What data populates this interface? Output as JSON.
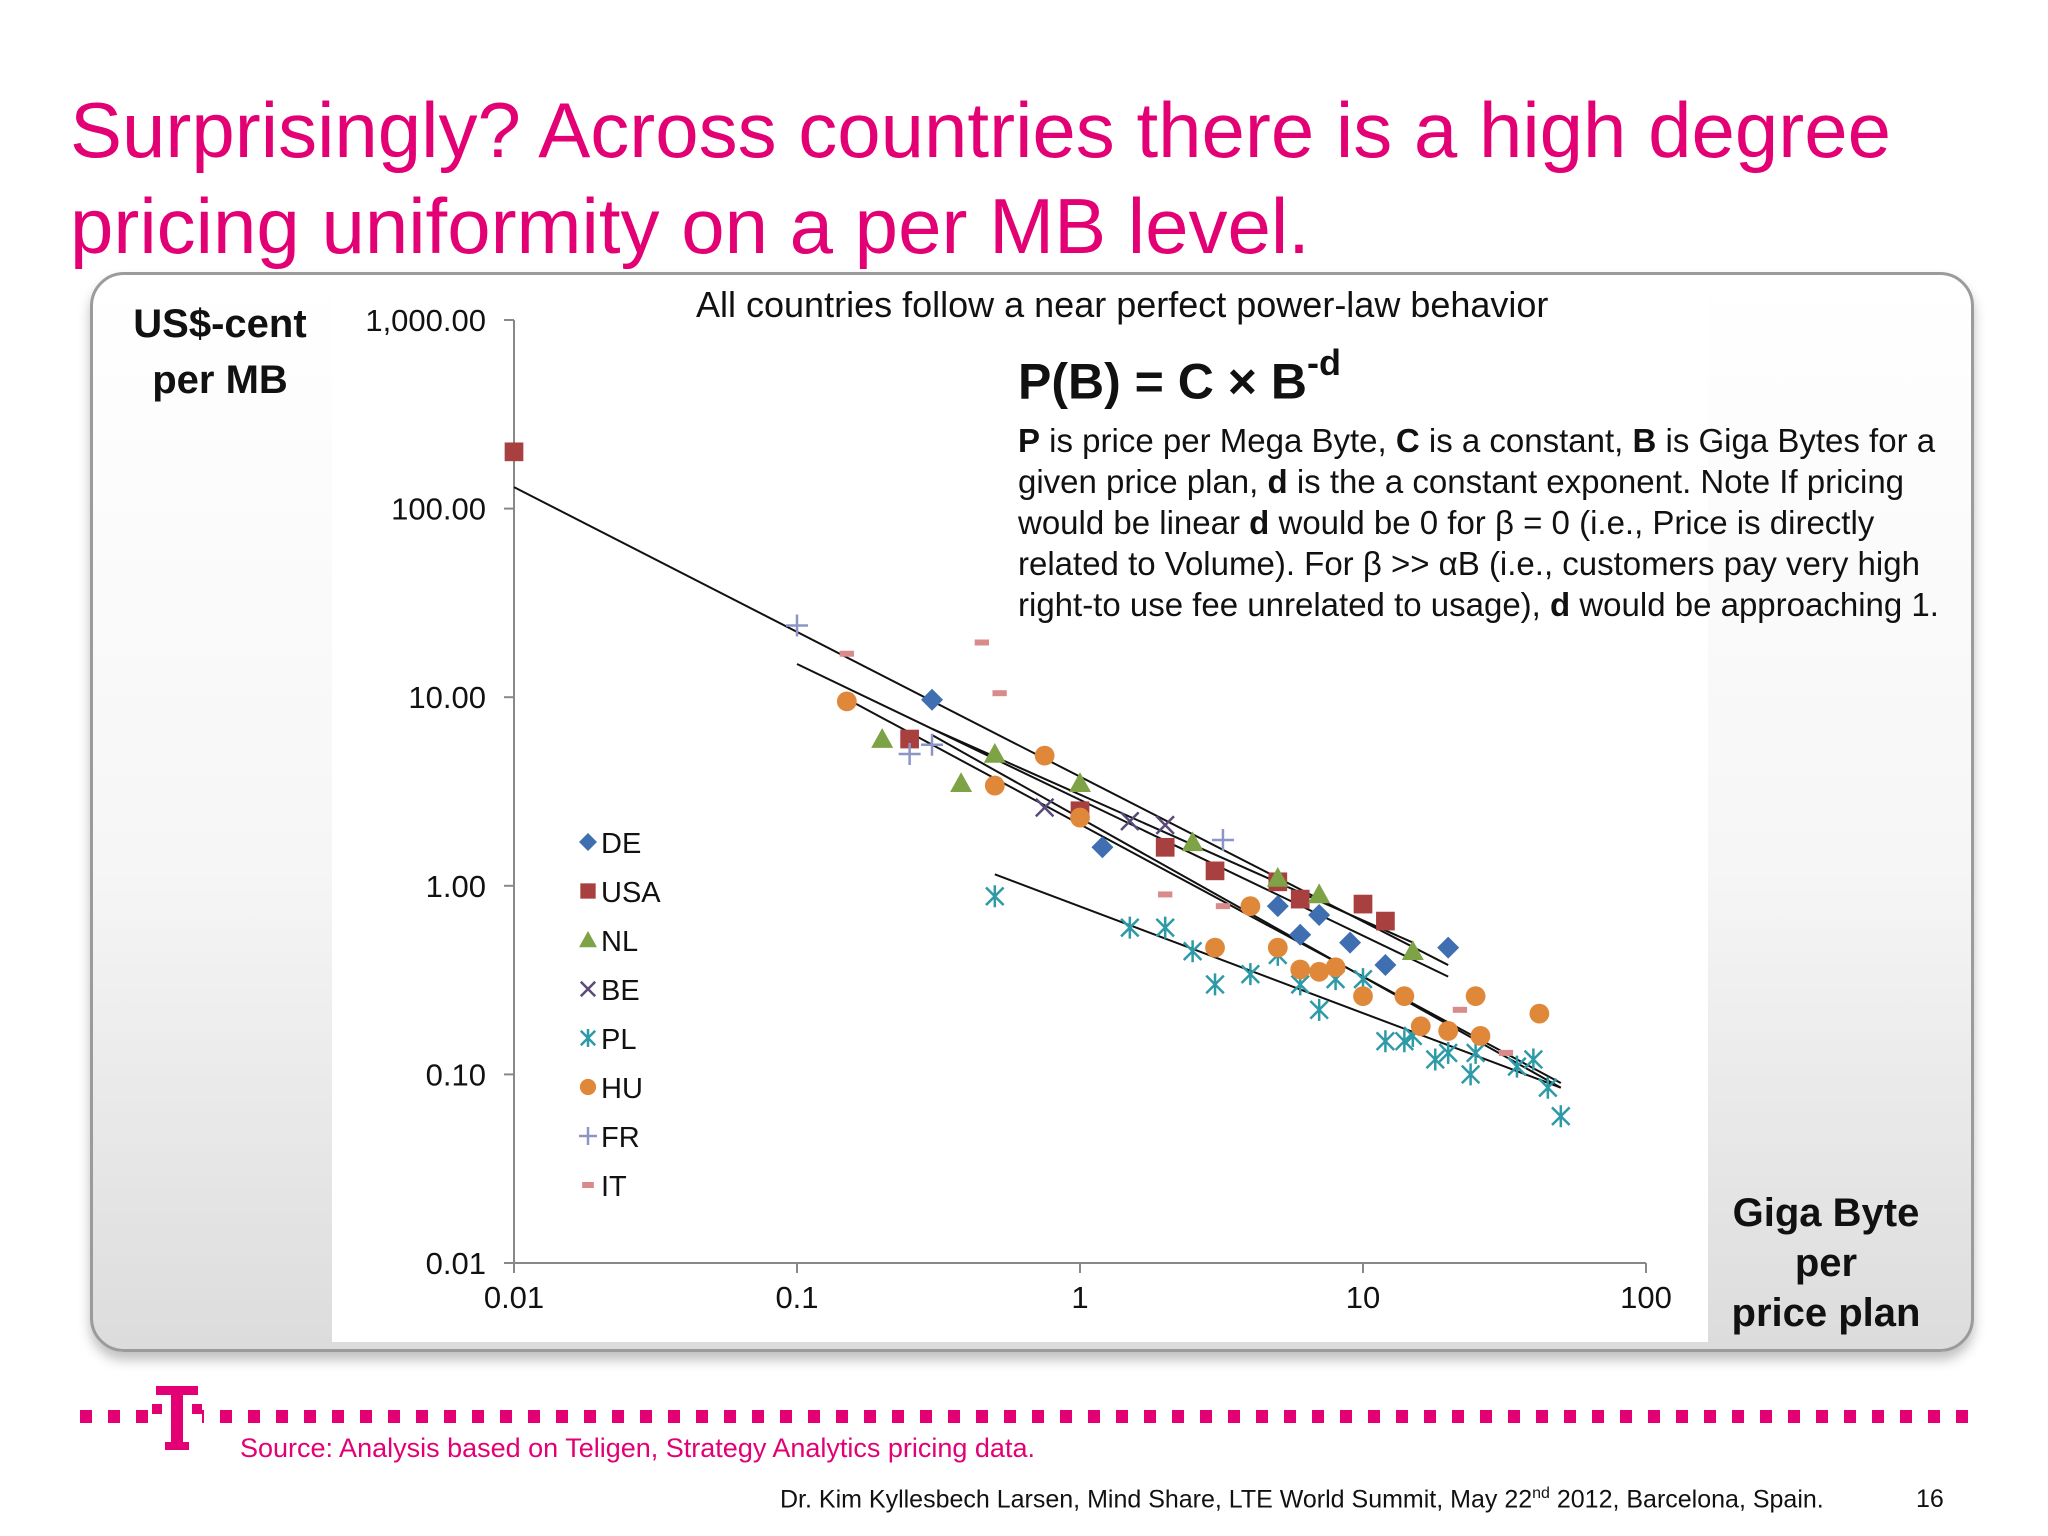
{
  "slide": {
    "title": "Surprisingly? Across countries there is a high degree pricing uniformity on a per MB level.",
    "source": "Source: Analysis based on Teligen, Strategy Analytics pricing data.",
    "footer_pre": "Dr. Kim Kyllesbech Larsen, Mind Share, LTE World Summit, May 22",
    "footer_sup": "nd",
    "footer_post": " 2012, Barcelona, Spain.",
    "page_number": "16"
  },
  "annotation": {
    "headline": "All countries follow a near perfect  power-law behavior",
    "formula_base": "P(B) = C × B",
    "formula_exp": "-d"
  },
  "colors": {
    "accent": "#e20074",
    "DE": "#3f6fb0",
    "USA": "#a84040",
    "NL": "#7ea346",
    "BE": "#5a4a7a",
    "PL": "#2e9aa8",
    "HU": "#e0883a",
    "FR": "#8c96c6",
    "IT": "#d98a8a"
  },
  "chart_data": {
    "type": "scatter",
    "title": "",
    "xlabel": "Giga Byte\nper\nprice plan",
    "ylabel": "US$-cent\nper MB",
    "x_scale": "log",
    "y_scale": "log",
    "xlim": [
      0.01,
      100
    ],
    "ylim": [
      0.01,
      1000
    ],
    "x_ticks": [
      "0.01",
      "0.1",
      "1",
      "10",
      "100"
    ],
    "y_ticks": [
      "0.01",
      "0.10",
      "1.00",
      "10.00",
      "100.00",
      "1,000.00"
    ],
    "grid": false,
    "legend_position": "left",
    "series": [
      {
        "name": "DE",
        "marker": "diamond",
        "points": [
          [
            0.3,
            9.7
          ],
          [
            1.2,
            1.6
          ],
          [
            5,
            0.78
          ],
          [
            6,
            0.55
          ],
          [
            7,
            0.7
          ],
          [
            9,
            0.5
          ],
          [
            12,
            0.38
          ],
          [
            20,
            0.47
          ]
        ]
      },
      {
        "name": "USA",
        "marker": "square",
        "points": [
          [
            0.01,
            200
          ],
          [
            0.25,
            6
          ],
          [
            1,
            2.5
          ],
          [
            2,
            1.6
          ],
          [
            3,
            1.2
          ],
          [
            5,
            1.05
          ],
          [
            6,
            0.85
          ],
          [
            10,
            0.8
          ],
          [
            12,
            0.65
          ]
        ]
      },
      {
        "name": "NL",
        "marker": "triangle",
        "points": [
          [
            0.2,
            6
          ],
          [
            0.38,
            3.5
          ],
          [
            0.5,
            5
          ],
          [
            1,
            3.5
          ],
          [
            2.5,
            1.7
          ],
          [
            5,
            1.1
          ],
          [
            7,
            0.9
          ],
          [
            15,
            0.45
          ]
        ]
      },
      {
        "name": "BE",
        "marker": "x",
        "points": [
          [
            0.75,
            2.6
          ],
          [
            1.5,
            2.2
          ],
          [
            2,
            2.1
          ]
        ]
      },
      {
        "name": "PL",
        "marker": "asterisk",
        "points": [
          [
            0.5,
            0.88
          ],
          [
            1.5,
            0.6
          ],
          [
            2,
            0.6
          ],
          [
            2.5,
            0.45
          ],
          [
            3,
            0.3
          ],
          [
            4,
            0.34
          ],
          [
            5,
            0.43
          ],
          [
            6,
            0.3
          ],
          [
            7,
            0.22
          ],
          [
            8,
            0.32
          ],
          [
            10,
            0.32
          ],
          [
            12,
            0.15
          ],
          [
            14,
            0.15
          ],
          [
            15,
            0.16
          ],
          [
            18,
            0.12
          ],
          [
            20,
            0.13
          ],
          [
            24,
            0.1
          ],
          [
            25,
            0.13
          ],
          [
            35,
            0.11
          ],
          [
            40,
            0.12
          ],
          [
            45,
            0.085
          ],
          [
            50,
            0.06
          ]
        ]
      },
      {
        "name": "HU",
        "marker": "circle",
        "points": [
          [
            0.15,
            9.5
          ],
          [
            0.5,
            3.4
          ],
          [
            0.75,
            4.9
          ],
          [
            1,
            2.3
          ],
          [
            3,
            0.47
          ],
          [
            4,
            0.78
          ],
          [
            5,
            0.47
          ],
          [
            6,
            0.36
          ],
          [
            7,
            0.35
          ],
          [
            8,
            0.37
          ],
          [
            10,
            0.26
          ],
          [
            14,
            0.26
          ],
          [
            16,
            0.18
          ],
          [
            20,
            0.17
          ],
          [
            25,
            0.26
          ],
          [
            26,
            0.16
          ],
          [
            42,
            0.21
          ]
        ]
      },
      {
        "name": "FR",
        "marker": "plus",
        "points": [
          [
            0.1,
            24
          ],
          [
            0.25,
            5
          ],
          [
            0.3,
            5.6
          ],
          [
            3.2,
            1.75
          ]
        ]
      },
      {
        "name": "IT",
        "marker": "dash",
        "points": [
          [
            0.15,
            17
          ],
          [
            0.45,
            19.5
          ],
          [
            0.52,
            10.5
          ],
          [
            2,
            0.9
          ],
          [
            3.2,
            0.78
          ],
          [
            22,
            0.22
          ],
          [
            32,
            0.13
          ]
        ]
      }
    ],
    "fit_lines": [
      {
        "x": [
          0.01,
          20
        ],
        "y": [
          130,
          0.38
        ]
      },
      {
        "x": [
          0.1,
          20
        ],
        "y": [
          15,
          0.33
        ]
      },
      {
        "x": [
          0.15,
          50
        ],
        "y": [
          9.8,
          0.09
        ]
      },
      {
        "x": [
          0.3,
          50
        ],
        "y": [
          6.3,
          0.085
        ]
      },
      {
        "x": [
          0.3,
          15
        ],
        "y": [
          6.8,
          0.5
        ]
      },
      {
        "x": [
          0.5,
          50
        ],
        "y": [
          1.15,
          0.085
        ]
      }
    ]
  }
}
